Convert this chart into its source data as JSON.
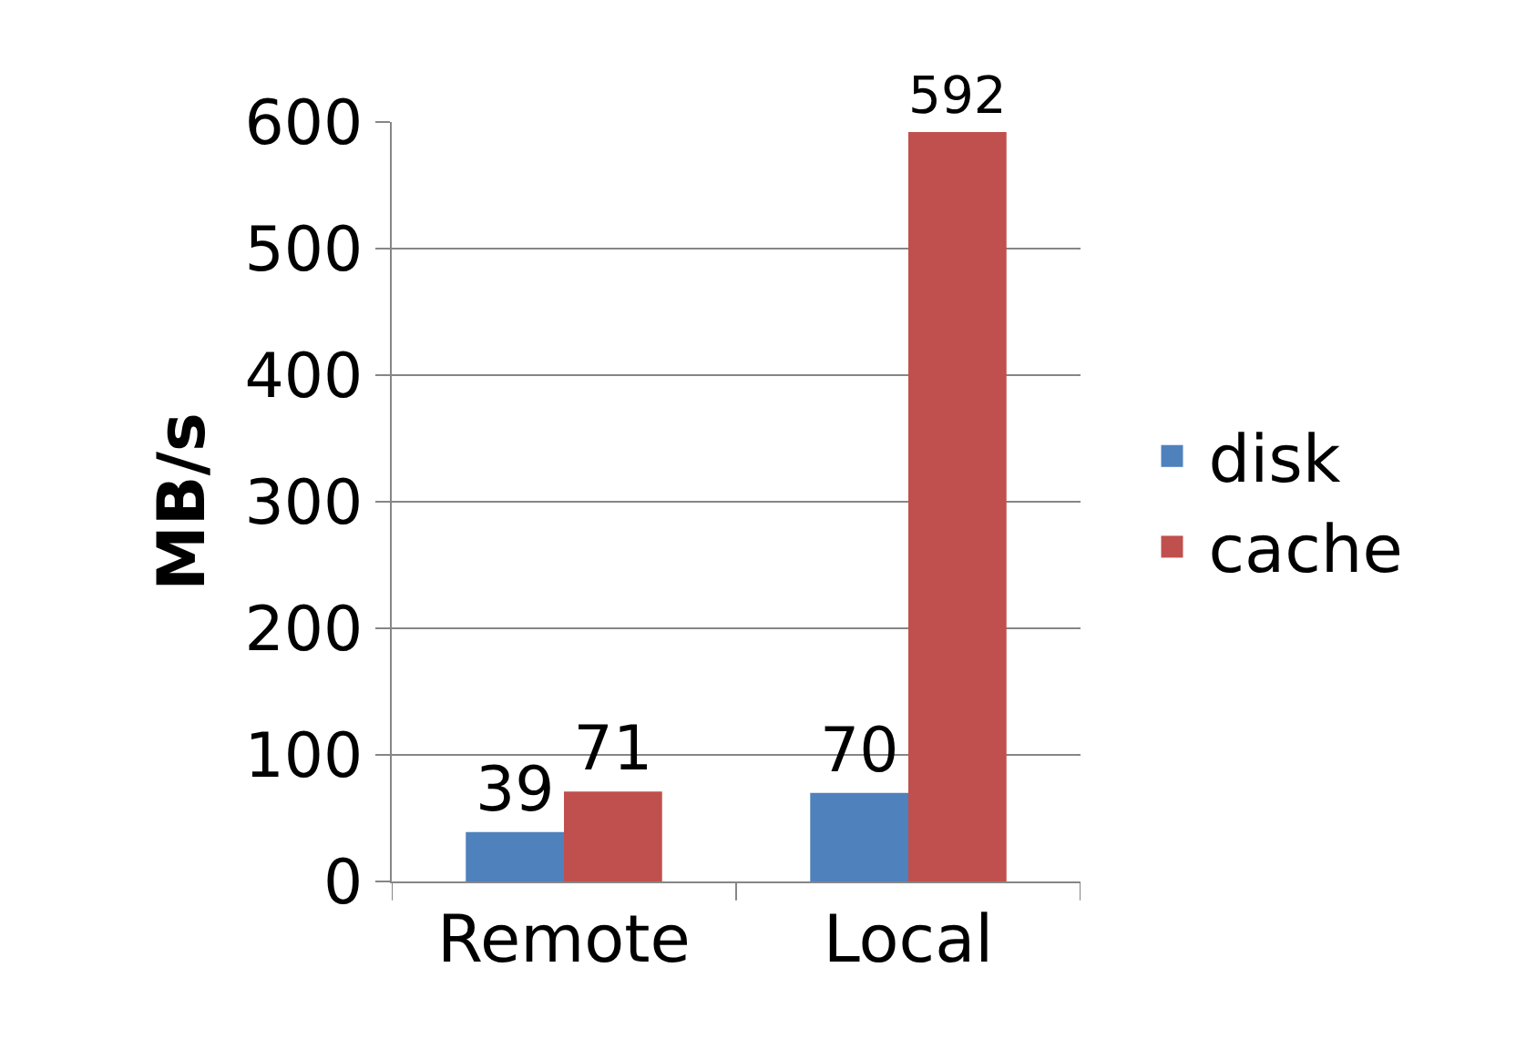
{
  "chart_data": {
    "type": "bar",
    "ylabel": "MB/s",
    "categories": [
      "Remote",
      "Local"
    ],
    "series": [
      {
        "name": "disk",
        "color": "#4f81bd",
        "values": [
          39,
          70
        ]
      },
      {
        "name": "cache",
        "color": "#c0504d",
        "values": [
          71,
          592
        ]
      }
    ],
    "ylim": [
      0,
      600
    ],
    "yticks": [
      0,
      100,
      200,
      300,
      400,
      500,
      600
    ],
    "grid": "y",
    "legend": "right",
    "data_labels": true
  }
}
